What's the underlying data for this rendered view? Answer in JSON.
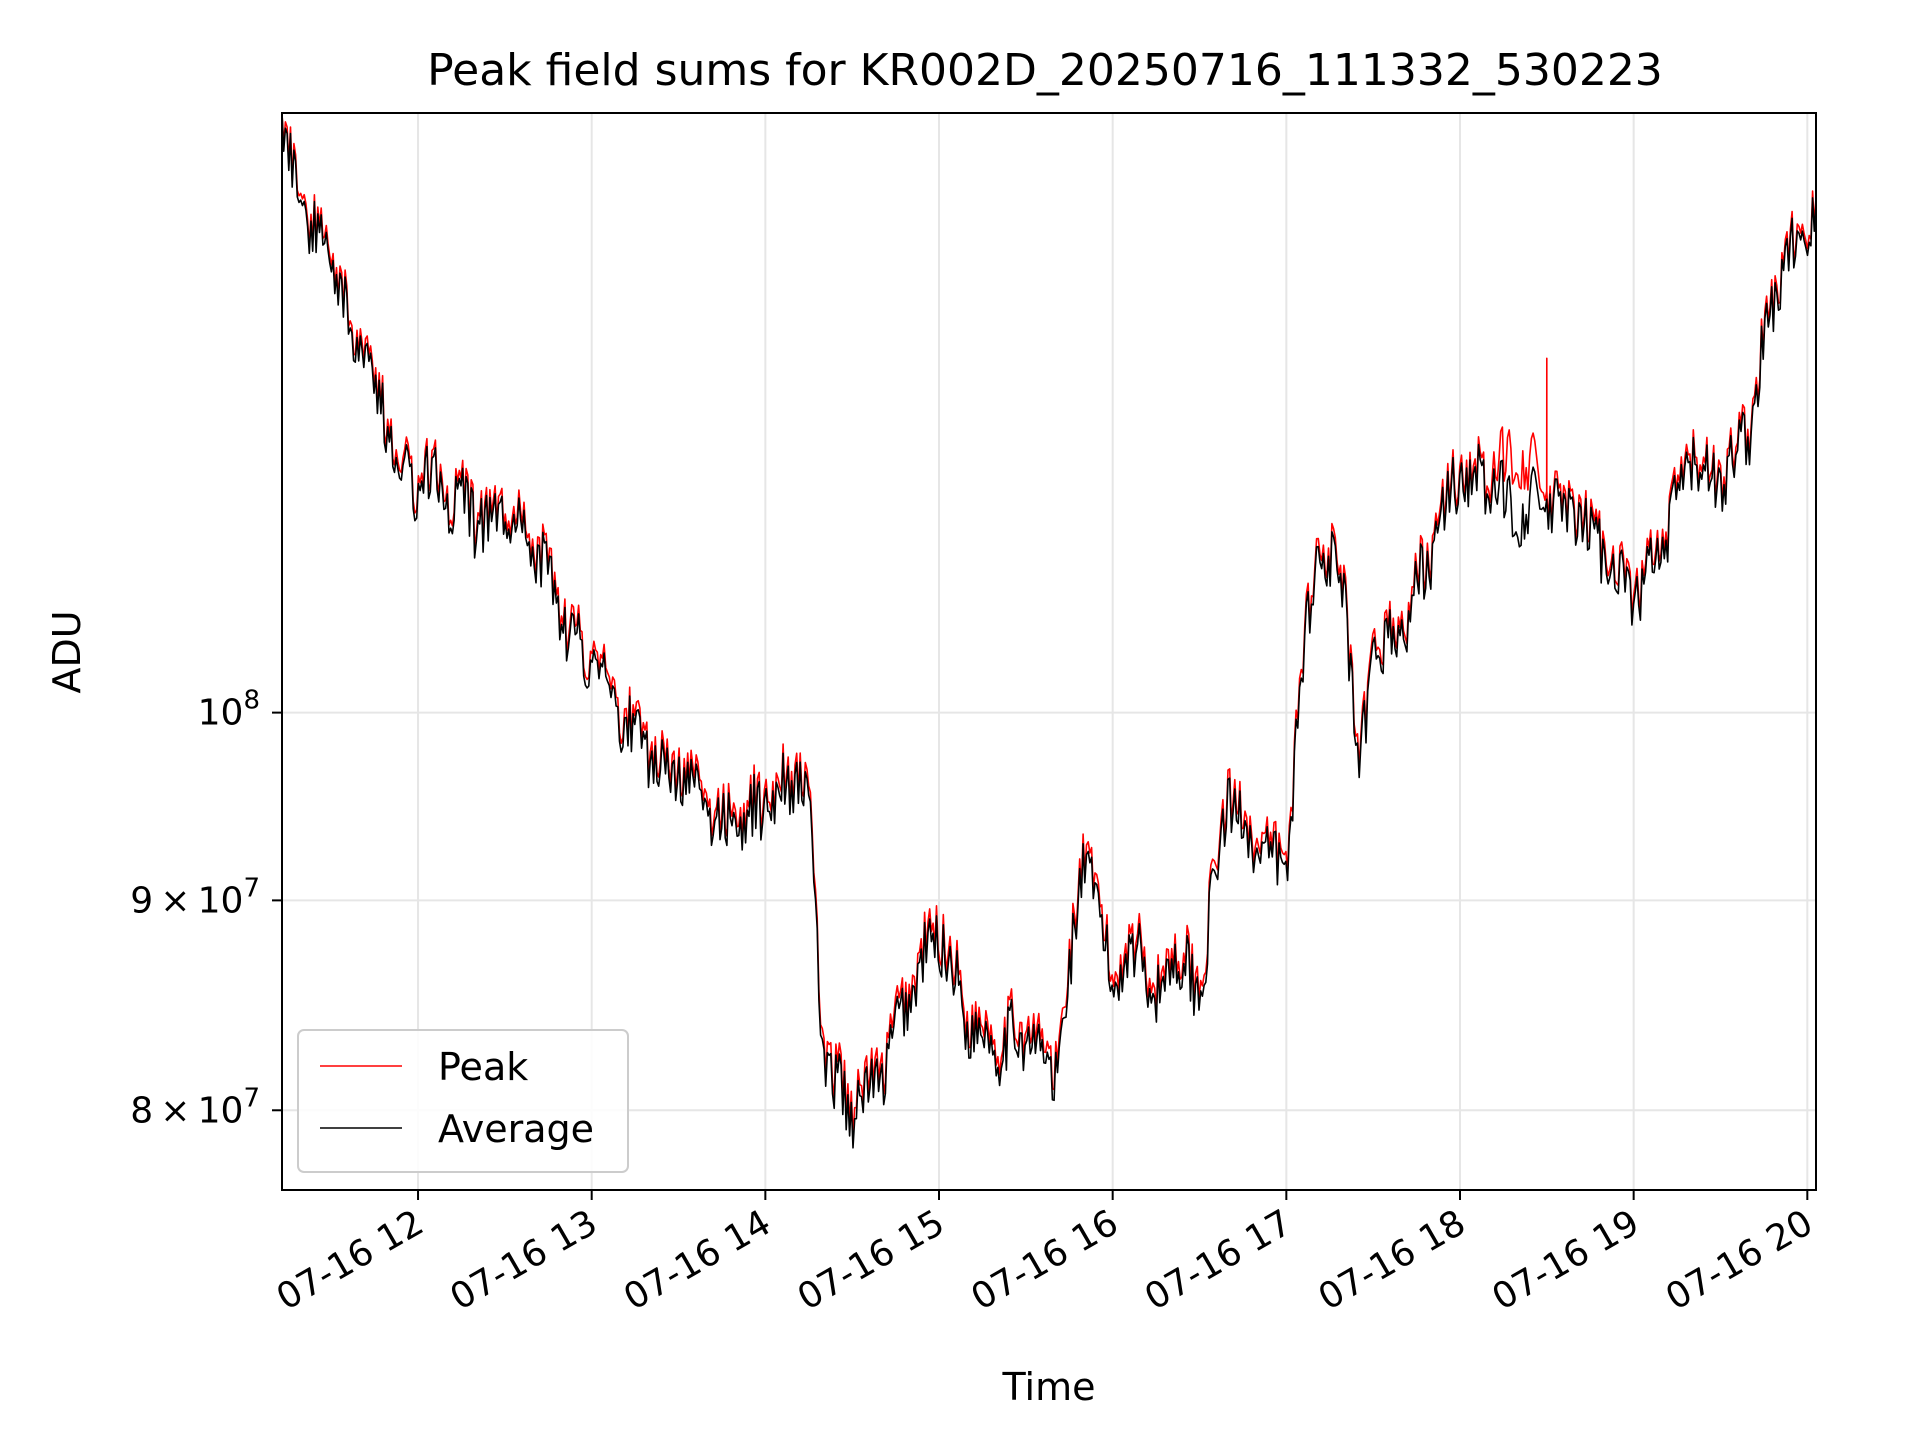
{
  "chart_data": {
    "type": "line",
    "title": "Peak field sums for KR002D_20250716_111332_530223",
    "xlabel": "Time",
    "ylabel": "ADU",
    "yscale": "log",
    "ylim": [
      76500000,
      140000000
    ],
    "xlim": [
      "2025-07-16 11:13",
      "2025-07-16 20:03"
    ],
    "grid": true,
    "legend": "lower-left",
    "x_ticks": [
      {
        "t": "2025-07-16 12:00",
        "label": "07-16 12"
      },
      {
        "t": "2025-07-16 13:00",
        "label": "07-16 13"
      },
      {
        "t": "2025-07-16 14:00",
        "label": "07-16 14"
      },
      {
        "t": "2025-07-16 15:00",
        "label": "07-16 15"
      },
      {
        "t": "2025-07-16 16:00",
        "label": "07-16 16"
      },
      {
        "t": "2025-07-16 17:00",
        "label": "07-16 17"
      },
      {
        "t": "2025-07-16 18:00",
        "label": "07-16 18"
      },
      {
        "t": "2025-07-16 19:00",
        "label": "07-16 19"
      },
      {
        "t": "2025-07-16 20:00",
        "label": "07-16 20"
      }
    ],
    "y_ticks": [
      {
        "v": 80000000,
        "mant": "8",
        "exp": "7"
      },
      {
        "v": 90000000,
        "mant": "9",
        "exp": "7"
      },
      {
        "v": 100000000,
        "mant": "",
        "exp": "8"
      }
    ],
    "series": [
      {
        "name": "Peak",
        "color": "#ff0000",
        "x": [
          "2025-07-16 11:13",
          "2025-07-16 11:20",
          "2025-07-16 11:30",
          "2025-07-16 11:40",
          "2025-07-16 11:50",
          "2025-07-16 11:58",
          "2025-07-16 12:05",
          "2025-07-16 12:12",
          "2025-07-16 12:20",
          "2025-07-16 12:30",
          "2025-07-16 12:40",
          "2025-07-16 12:48",
          "2025-07-16 12:55",
          "2025-07-16 13:02",
          "2025-07-16 13:10",
          "2025-07-16 13:20",
          "2025-07-16 13:30",
          "2025-07-16 13:40",
          "2025-07-16 13:50",
          "2025-07-16 14:00",
          "2025-07-16 14:10",
          "2025-07-16 14:15",
          "2025-07-16 14:20",
          "2025-07-16 14:30",
          "2025-07-16 14:40",
          "2025-07-16 14:50",
          "2025-07-16 15:00",
          "2025-07-16 15:10",
          "2025-07-16 15:20",
          "2025-07-16 15:30",
          "2025-07-16 15:40",
          "2025-07-16 15:45",
          "2025-07-16 15:50",
          "2025-07-16 16:00",
          "2025-07-16 16:10",
          "2025-07-16 16:15",
          "2025-07-16 16:20",
          "2025-07-16 16:30",
          "2025-07-16 16:40",
          "2025-07-16 16:50",
          "2025-07-16 17:00",
          "2025-07-16 17:05",
          "2025-07-16 17:10",
          "2025-07-16 17:20",
          "2025-07-16 17:25",
          "2025-07-16 17:30",
          "2025-07-16 17:40",
          "2025-07-16 17:50",
          "2025-07-16 18:00",
          "2025-07-16 18:10",
          "2025-07-16 18:20",
          "2025-07-16 18:30",
          "2025-07-16 18:40",
          "2025-07-16 18:50",
          "2025-07-16 19:00",
          "2025-07-16 19:10",
          "2025-07-16 19:15",
          "2025-07-16 19:20",
          "2025-07-16 19:30",
          "2025-07-16 19:40",
          "2025-07-16 19:50",
          "2025-07-16 20:00",
          "2025-07-16 20:03"
        ],
        "values": [
          140000000,
          133000000,
          129000000,
          123000000,
          118000000,
          114000000,
          115000000,
          113000000,
          112000000,
          112000000,
          111000000,
          107000000,
          104000000,
          103000000,
          100500000,
          98500000,
          97000000,
          95000000,
          94000000,
          95500000,
          97000000,
          96000000,
          82500000,
          80500000,
          82000000,
          86000000,
          89000000,
          84500000,
          83500000,
          84000000,
          82000000,
          86500000,
          93000000,
          86500000,
          88500000,
          85000000,
          88000000,
          86000000,
          96000000,
          93000000,
          92000000,
          102000000,
          110000000,
          108000000,
          96000000,
          104000000,
          105000000,
          110000000,
          115000000,
          114000000,
          116000000,
          113000000,
          112000000,
          110000000,
          107000000,
          110000000,
          113000000,
          116000000,
          114000000,
          118000000,
          128000000,
          132000000,
          133000000
        ]
      },
      {
        "name": "Average",
        "color": "#000000",
        "x": [
          "2025-07-16 11:13",
          "2025-07-16 11:20",
          "2025-07-16 11:30",
          "2025-07-16 11:40",
          "2025-07-16 11:50",
          "2025-07-16 11:58",
          "2025-07-16 12:05",
          "2025-07-16 12:12",
          "2025-07-16 12:20",
          "2025-07-16 12:30",
          "2025-07-16 12:40",
          "2025-07-16 12:48",
          "2025-07-16 12:55",
          "2025-07-16 13:02",
          "2025-07-16 13:10",
          "2025-07-16 13:20",
          "2025-07-16 13:30",
          "2025-07-16 13:40",
          "2025-07-16 13:50",
          "2025-07-16 14:00",
          "2025-07-16 14:10",
          "2025-07-16 14:15",
          "2025-07-16 14:20",
          "2025-07-16 14:30",
          "2025-07-16 14:40",
          "2025-07-16 14:50",
          "2025-07-16 15:00",
          "2025-07-16 15:10",
          "2025-07-16 15:20",
          "2025-07-16 15:30",
          "2025-07-16 15:40",
          "2025-07-16 15:45",
          "2025-07-16 15:50",
          "2025-07-16 16:00",
          "2025-07-16 16:10",
          "2025-07-16 16:15",
          "2025-07-16 16:20",
          "2025-07-16 16:30",
          "2025-07-16 16:40",
          "2025-07-16 16:50",
          "2025-07-16 17:00",
          "2025-07-16 17:05",
          "2025-07-16 17:10",
          "2025-07-16 17:20",
          "2025-07-16 17:25",
          "2025-07-16 17:30",
          "2025-07-16 17:40",
          "2025-07-16 17:50",
          "2025-07-16 18:00",
          "2025-07-16 18:10",
          "2025-07-16 18:20",
          "2025-07-16 18:30",
          "2025-07-16 18:40",
          "2025-07-16 18:50",
          "2025-07-16 19:00",
          "2025-07-16 19:10",
          "2025-07-16 19:15",
          "2025-07-16 19:20",
          "2025-07-16 19:30",
          "2025-07-16 19:40",
          "2025-07-16 19:50",
          "2025-07-16 20:00",
          "2025-07-16 20:03"
        ],
        "values": [
          139500000,
          132500000,
          128500000,
          122500000,
          117500000,
          113500000,
          114500000,
          112500000,
          111500000,
          111500000,
          110500000,
          106500000,
          103500000,
          102500000,
          100000000,
          98000000,
          96500000,
          94500000,
          93500000,
          95000000,
          96500000,
          95500000,
          82000000,
          80000000,
          81500000,
          85500000,
          88500000,
          84000000,
          83000000,
          83500000,
          81500000,
          86000000,
          92500000,
          86000000,
          88000000,
          84500000,
          87500000,
          85500000,
          95500000,
          92500000,
          91500000,
          101500000,
          109500000,
          107500000,
          95500000,
          103500000,
          104500000,
          109500000,
          114500000,
          113500000,
          112000000,
          112500000,
          111500000,
          109500000,
          106500000,
          109500000,
          112500000,
          115500000,
          113500000,
          117500000,
          127500000,
          131500000,
          132500000
        ]
      }
    ],
    "annotations": [
      {
        "x": "2025-07-16 18:30",
        "series": "Peak",
        "spike_to": 122000000
      }
    ]
  }
}
